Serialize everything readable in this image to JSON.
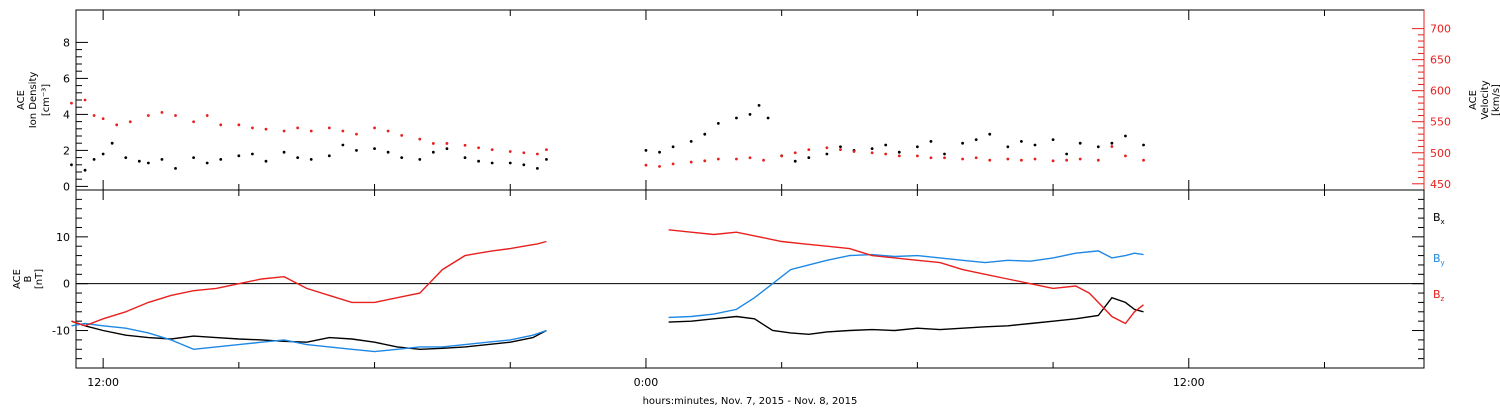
{
  "figure": {
    "xlabel": "hours:minutes, Nov.  7, 2015 - Nov.  8, 2015",
    "x_ticks": [
      {
        "t": 12,
        "label": "12:00"
      },
      {
        "t": 24,
        "label": "0:00"
      },
      {
        "t": 36,
        "label": "12:00"
      }
    ]
  },
  "colors": {
    "black": "#000000",
    "red": "#e8201e",
    "blue": "#1e88e5"
  },
  "chart_data": [
    {
      "type": "scatter",
      "title": "",
      "ylabel_left": [
        "ACE",
        "Ion Density",
        "[cm⁻³]"
      ],
      "ylabel_right": [
        "ACE",
        "Velocity",
        "[km/s]"
      ],
      "xlim_hours": [
        11.4,
        41.2
      ],
      "ylim_left": [
        -0.2,
        9.8
      ],
      "ylim_right": [
        440,
        730
      ],
      "yticks_left": [
        0,
        2,
        4,
        6,
        8
      ],
      "yticks_right": [
        450,
        500,
        550,
        600,
        650,
        700
      ],
      "data_gap_hours": [
        21.8,
        24.2
      ],
      "series": [
        {
          "name": "Ion Density",
          "color": "#000000",
          "axis": "left",
          "x": [
            11.3,
            11.6,
            11.8,
            12.0,
            12.2,
            12.5,
            12.8,
            13.0,
            13.3,
            13.6,
            14.0,
            14.3,
            14.6,
            15.0,
            15.3,
            15.6,
            16.0,
            16.3,
            16.6,
            17.0,
            17.3,
            17.6,
            18.0,
            18.3,
            18.6,
            19.0,
            19.3,
            19.6,
            20.0,
            20.3,
            20.6,
            21.0,
            21.3,
            21.6,
            21.8,
            24.0,
            24.3,
            24.6,
            25.0,
            25.3,
            25.6,
            26.0,
            26.3,
            26.5,
            26.7,
            27.0,
            27.3,
            27.6,
            28.0,
            28.3,
            28.6,
            29.0,
            29.3,
            29.6,
            30.0,
            30.3,
            30.6,
            31.0,
            31.3,
            31.6,
            32.0,
            32.3,
            32.6,
            33.0,
            33.3,
            33.6,
            34.0,
            34.3,
            34.6,
            35.0
          ],
          "values": [
            1.2,
            0.9,
            1.5,
            1.8,
            2.4,
            1.6,
            1.4,
            1.3,
            1.5,
            1.0,
            1.6,
            1.3,
            1.5,
            1.7,
            1.8,
            1.4,
            1.9,
            1.6,
            1.5,
            1.7,
            2.3,
            2.0,
            2.1,
            1.9,
            1.6,
            1.5,
            1.9,
            2.1,
            1.6,
            1.4,
            1.3,
            1.3,
            1.2,
            1.0,
            1.5,
            2.0,
            1.9,
            2.2,
            2.5,
            2.9,
            3.5,
            3.8,
            4.0,
            4.5,
            3.8,
            1.7,
            1.4,
            1.6,
            1.8,
            2.2,
            2.0,
            2.1,
            2.3,
            1.9,
            2.2,
            2.5,
            1.8,
            2.4,
            2.6,
            2.9,
            2.2,
            2.5,
            2.3,
            2.6,
            1.8,
            2.4,
            2.2,
            2.4,
            2.8,
            2.3
          ]
        },
        {
          "name": "Velocity",
          "color": "#e8201e",
          "axis": "right",
          "x": [
            11.3,
            11.6,
            11.8,
            12.0,
            12.3,
            12.6,
            13.0,
            13.3,
            13.6,
            14.0,
            14.3,
            14.6,
            15.0,
            15.3,
            15.6,
            16.0,
            16.3,
            16.6,
            17.0,
            17.3,
            17.6,
            18.0,
            18.3,
            18.6,
            19.0,
            19.3,
            19.6,
            20.0,
            20.3,
            20.6,
            21.0,
            21.3,
            21.6,
            21.8,
            24.0,
            24.3,
            24.6,
            25.0,
            25.3,
            25.6,
            26.0,
            26.3,
            26.6,
            27.0,
            27.3,
            27.6,
            28.0,
            28.3,
            28.6,
            29.0,
            29.3,
            29.6,
            30.0,
            30.3,
            30.6,
            31.0,
            31.3,
            31.6,
            32.0,
            32.3,
            32.6,
            33.0,
            33.3,
            33.6,
            34.0,
            34.3,
            34.6,
            35.0
          ],
          "values": [
            580,
            585,
            560,
            555,
            545,
            550,
            560,
            565,
            560,
            550,
            560,
            545,
            545,
            540,
            538,
            535,
            540,
            535,
            540,
            535,
            530,
            540,
            535,
            528,
            522,
            515,
            515,
            512,
            508,
            505,
            502,
            500,
            498,
            505,
            480,
            478,
            482,
            485,
            487,
            490,
            490,
            492,
            488,
            495,
            500,
            505,
            508,
            505,
            502,
            500,
            498,
            495,
            495,
            492,
            492,
            490,
            492,
            488,
            490,
            488,
            490,
            487,
            488,
            490,
            488,
            510,
            495,
            488
          ]
        }
      ]
    },
    {
      "type": "line",
      "title": "",
      "ylabel_left": [
        "ACE",
        "B",
        "[nT]"
      ],
      "xlim_hours": [
        11.4,
        41.2
      ],
      "ylim": [
        -18,
        20
      ],
      "yticks": [
        -10,
        0,
        10
      ],
      "zero_line": true,
      "data_gap_hours": [
        21.8,
        24.2
      ],
      "legend_position": "right",
      "series": [
        {
          "name": "Bx",
          "color": "#000000",
          "x": [
            11.3,
            11.6,
            12.0,
            12.5,
            13.0,
            13.5,
            14.0,
            14.5,
            15.0,
            15.5,
            16.0,
            16.5,
            17.0,
            17.5,
            18.0,
            18.5,
            19.0,
            19.5,
            20.0,
            20.5,
            21.0,
            21.5,
            21.8,
            24.0,
            24.5,
            25.0,
            25.5,
            26.0,
            26.4,
            26.8,
            27.2,
            27.6,
            28.0,
            28.5,
            29.0,
            29.5,
            30.0,
            30.5,
            31.0,
            31.5,
            32.0,
            32.5,
            33.0,
            33.5,
            34.0,
            34.3,
            34.6,
            34.8,
            35.0
          ],
          "values": [
            -8,
            -9,
            -10,
            -11,
            -11.5,
            -11.8,
            -11.2,
            -11.5,
            -11.8,
            -12,
            -12.3,
            -12.5,
            -11.5,
            -11.8,
            -12.5,
            -13.5,
            -14,
            -13.8,
            -13.5,
            -13,
            -12.5,
            -11.5,
            -10,
            -8.5,
            -8.2,
            -8,
            -7.5,
            -7,
            -7.5,
            -10,
            -10.5,
            -10.8,
            -10.3,
            -10,
            -9.8,
            -10,
            -9.5,
            -9.8,
            -9.5,
            -9.2,
            -9,
            -8.5,
            -8,
            -7.5,
            -6.8,
            -3,
            -4,
            -5.5,
            -6
          ]
        },
        {
          "name": "By",
          "color": "#1e88e5",
          "x": [
            11.3,
            11.6,
            12.0,
            12.5,
            13.0,
            13.5,
            14.0,
            14.5,
            15.0,
            15.5,
            16.0,
            16.5,
            17.0,
            17.5,
            18.0,
            18.5,
            19.0,
            19.5,
            20.0,
            20.5,
            21.0,
            21.5,
            21.8,
            24.0,
            24.5,
            25.0,
            25.5,
            26.0,
            26.4,
            26.8,
            27.2,
            27.6,
            28.0,
            28.5,
            29.0,
            29.5,
            30.0,
            30.5,
            31.0,
            31.5,
            32.0,
            32.5,
            33.0,
            33.5,
            34.0,
            34.3,
            34.6,
            34.8,
            35.0
          ],
          "values": [
            -9,
            -8.5,
            -9,
            -9.5,
            -10.5,
            -12,
            -14,
            -13.5,
            -13,
            -12.5,
            -12,
            -13,
            -13.5,
            -14,
            -14.5,
            -14,
            -13.5,
            -13.5,
            -13,
            -12.5,
            -12,
            -11,
            -10,
            -7.5,
            -7.2,
            -7,
            -6.5,
            -5.5,
            -3,
            0,
            3,
            4,
            5,
            6,
            6.2,
            5.8,
            6,
            5.5,
            5,
            4.5,
            5,
            4.8,
            5.5,
            6.5,
            7,
            5.5,
            6,
            6.5,
            6.2
          ]
        },
        {
          "name": "Bz",
          "color": "#e8201e",
          "x": [
            11.3,
            11.6,
            12.0,
            12.5,
            13.0,
            13.5,
            14.0,
            14.5,
            15.0,
            15.5,
            16.0,
            16.5,
            17.0,
            17.5,
            18.0,
            18.5,
            19.0,
            19.5,
            20.0,
            20.3,
            20.6,
            21.0,
            21.3,
            21.6,
            21.8,
            24.0,
            24.5,
            25.0,
            25.5,
            26.0,
            26.5,
            27.0,
            27.5,
            28.0,
            28.5,
            29.0,
            29.5,
            30.0,
            30.5,
            31.0,
            31.5,
            32.0,
            32.5,
            33.0,
            33.5,
            33.8,
            34.0,
            34.3,
            34.6,
            34.8,
            35.0
          ],
          "values": [
            -8,
            -9,
            -7.5,
            -6,
            -4,
            -2.5,
            -1.5,
            -1,
            0,
            1,
            1.5,
            -1,
            -2.5,
            -4,
            -4,
            -3,
            -2,
            3,
            6,
            6.5,
            7,
            7.5,
            8,
            8.5,
            9,
            11,
            11.5,
            11,
            10.5,
            11,
            10,
            9,
            8.5,
            8,
            7.5,
            6,
            5.5,
            5,
            4.5,
            3,
            2,
            1,
            0,
            -1,
            -0.5,
            -2,
            -4,
            -7,
            -8.5,
            -6,
            -4.5
          ]
        }
      ]
    }
  ]
}
